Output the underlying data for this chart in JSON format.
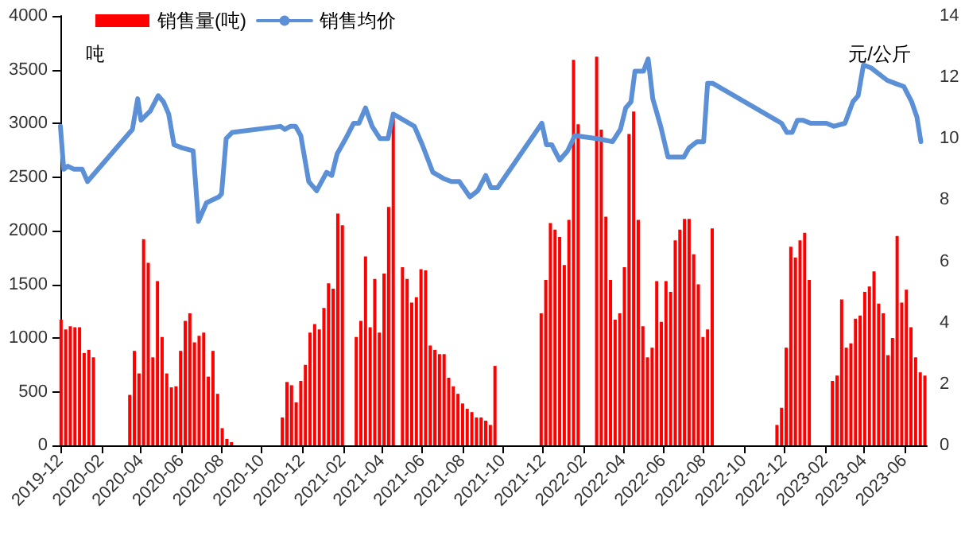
{
  "chart_data": {
    "type": "bar",
    "legend": "top left",
    "ylabel": "吨",
    "y2label": "元/公斤",
    "grid": false,
    "marker": "none",
    "xlim": [
      "2019-12-01",
      "2023-07-05"
    ],
    "xticks": [
      "2019-12",
      "2020-02",
      "2020-04",
      "2020-06",
      "2020-08",
      "2020-10",
      "2020-12",
      "2021-02",
      "2021-04",
      "2021-06",
      "2021-08",
      "2021-10",
      "2021-12",
      "2022-02",
      "2022-04",
      "2022-06",
      "2022-08",
      "2022-10",
      "2022-12",
      "2023-02",
      "2023-04",
      "2023-06"
    ],
    "ylim": [
      0,
      4000
    ],
    "yticks": [
      0,
      500,
      1000,
      1500,
      2000,
      2500,
      3000,
      3500,
      4000
    ],
    "y2lim": [
      0,
      14
    ],
    "y2ticks": [
      0,
      2,
      4,
      6,
      8,
      10,
      12,
      14
    ],
    "series": [
      {
        "name": "销售量(吨)",
        "color": "#ff0000",
        "x": [
          "2019-12-02",
          "2019-12-09",
          "2019-12-16",
          "2019-12-23",
          "2019-12-30",
          "2020-01-06",
          "2020-01-13",
          "2020-01-20",
          "2020-03-15",
          "2020-03-22",
          "2020-03-29",
          "2020-04-05",
          "2020-04-12",
          "2020-04-19",
          "2020-04-26",
          "2020-05-03",
          "2020-05-10",
          "2020-05-17",
          "2020-05-24",
          "2020-05-31",
          "2020-06-07",
          "2020-06-14",
          "2020-06-21",
          "2020-06-28",
          "2020-07-05",
          "2020-07-12",
          "2020-07-19",
          "2020-07-26",
          "2020-08-02",
          "2020-08-09",
          "2020-08-16",
          "2020-11-01",
          "2020-11-08",
          "2020-11-15",
          "2020-11-22",
          "2020-11-29",
          "2020-12-06",
          "2020-12-13",
          "2020-12-20",
          "2020-12-27",
          "2021-01-03",
          "2021-01-10",
          "2021-01-17",
          "2021-01-24",
          "2021-01-31",
          "2021-02-21",
          "2021-02-28",
          "2021-03-07",
          "2021-03-14",
          "2021-03-21",
          "2021-03-28",
          "2021-04-04",
          "2021-04-11",
          "2021-04-18",
          "2021-05-02",
          "2021-05-09",
          "2021-05-16",
          "2021-05-23",
          "2021-05-30",
          "2021-06-06",
          "2021-06-13",
          "2021-06-20",
          "2021-06-27",
          "2021-07-04",
          "2021-07-11",
          "2021-07-18",
          "2021-07-25",
          "2021-08-01",
          "2021-08-08",
          "2021-08-15",
          "2021-08-22",
          "2021-08-29",
          "2021-09-05",
          "2021-09-12",
          "2021-09-19",
          "2021-11-28",
          "2021-12-05",
          "2021-12-12",
          "2021-12-19",
          "2021-12-26",
          "2022-01-02",
          "2022-01-09",
          "2022-01-16",
          "2022-01-23",
          "2022-02-20",
          "2022-02-27",
          "2022-03-06",
          "2022-03-13",
          "2022-03-20",
          "2022-03-27",
          "2022-04-03",
          "2022-04-10",
          "2022-04-17",
          "2022-04-24",
          "2022-05-01",
          "2022-05-08",
          "2022-05-15",
          "2022-05-22",
          "2022-05-29",
          "2022-06-05",
          "2022-06-12",
          "2022-06-19",
          "2022-06-26",
          "2022-07-03",
          "2022-07-10",
          "2022-07-17",
          "2022-07-24",
          "2022-07-31",
          "2022-08-07",
          "2022-08-14",
          "2022-11-20",
          "2022-11-27",
          "2022-12-04",
          "2022-12-11",
          "2022-12-18",
          "2022-12-25",
          "2023-01-01",
          "2023-01-08",
          "2023-02-12",
          "2023-02-19",
          "2023-02-26",
          "2023-03-05",
          "2023-03-12",
          "2023-03-19",
          "2023-03-26",
          "2023-04-02",
          "2023-04-09",
          "2023-04-16",
          "2023-04-23",
          "2023-04-30",
          "2023-05-07",
          "2023-05-14",
          "2023-05-21",
          "2023-05-28",
          "2023-06-04",
          "2023-06-11",
          "2023-06-18",
          "2023-06-25",
          "2023-07-02"
        ],
        "values": [
          1170,
          1080,
          1110,
          1100,
          1100,
          860,
          890,
          820,
          470,
          880,
          670,
          1920,
          1700,
          820,
          1530,
          1010,
          670,
          540,
          550,
          880,
          1160,
          1230,
          960,
          1020,
          1050,
          640,
          880,
          480,
          160,
          60,
          30,
          260,
          590,
          560,
          400,
          600,
          750,
          1050,
          1130,
          1080,
          1280,
          1510,
          1460,
          2160,
          2050,
          1010,
          1160,
          1760,
          1100,
          1550,
          1050,
          1600,
          2220,
          3040,
          1660,
          1550,
          1330,
          1380,
          1640,
          1630,
          930,
          890,
          850,
          850,
          630,
          550,
          480,
          390,
          340,
          310,
          260,
          260,
          230,
          190,
          740,
          1230,
          1540,
          2070,
          2010,
          1940,
          1680,
          2100,
          3590,
          2990,
          3620,
          2940,
          2130,
          1540,
          1170,
          1230,
          1660,
          2900,
          3110,
          2100,
          1110,
          820,
          910,
          1530,
          1150,
          1530,
          1430,
          1910,
          2010,
          2110,
          2110,
          1780,
          1500,
          1010,
          1080,
          2020,
          190,
          350,
          910,
          1850,
          1750,
          1910,
          1980,
          1540,
          600,
          650,
          1360,
          910,
          950,
          1180,
          1210,
          1430,
          1480,
          1620,
          1320,
          1230,
          840,
          1000,
          1950,
          1330,
          1450,
          1100,
          820,
          680,
          650
        ]
      },
      {
        "type": "line",
        "name": "销售均价",
        "axis": "y2",
        "color": "#5b8fd6",
        "line_style": "solid",
        "x": [
          "2019-12-01",
          "2019-12-06",
          "2019-12-12",
          "2019-12-22",
          "2020-01-03",
          "2020-01-11",
          "2020-03-19",
          "2020-03-27",
          "2020-04-01",
          "2020-04-15",
          "2020-04-27",
          "2020-05-05",
          "2020-05-13",
          "2020-05-21",
          "2020-06-02",
          "2020-06-19",
          "2020-06-27",
          "2020-07-09",
          "2020-07-18",
          "2020-07-28",
          "2020-08-01",
          "2020-08-08",
          "2020-08-17",
          "2020-10-29",
          "2020-11-05",
          "2020-11-13",
          "2020-11-21",
          "2020-11-29",
          "2020-12-11",
          "2020-12-23",
          "2021-01-07",
          "2021-01-15",
          "2021-01-23",
          "2021-02-05",
          "2021-02-17",
          "2021-02-25",
          "2021-03-07",
          "2021-03-17",
          "2021-03-29",
          "2021-04-10",
          "2021-04-18",
          "2021-05-04",
          "2021-05-20",
          "2021-06-01",
          "2021-06-17",
          "2021-07-03",
          "2021-07-15",
          "2021-07-27",
          "2021-08-12",
          "2021-08-24",
          "2021-09-05",
          "2021-09-13",
          "2021-09-23",
          "2021-11-29",
          "2021-12-06",
          "2021-12-14",
          "2021-12-26",
          "2022-01-07",
          "2022-01-18",
          "2022-02-20",
          "2022-03-16",
          "2022-03-28",
          "2022-04-05",
          "2022-04-13",
          "2022-04-19",
          "2022-05-02",
          "2022-05-09",
          "2022-05-16",
          "2022-05-28",
          "2022-06-08",
          "2022-06-16",
          "2022-07-02",
          "2022-07-10",
          "2022-07-22",
          "2022-08-01",
          "2022-08-07",
          "2022-08-15",
          "2022-11-19",
          "2022-11-27",
          "2022-12-05",
          "2022-12-13",
          "2022-12-21",
          "2022-12-29",
          "2023-01-10",
          "2023-02-03",
          "2023-02-14",
          "2023-03-03",
          "2023-03-15",
          "2023-03-23",
          "2023-03-31",
          "2023-04-12",
          "2023-04-24",
          "2023-05-06",
          "2023-05-18",
          "2023-05-31",
          "2023-06-12",
          "2023-06-20",
          "2023-06-26"
        ],
        "values": [
          10.4,
          9.0,
          9.1,
          9.0,
          9.0,
          8.6,
          10.3,
          11.3,
          10.6,
          10.9,
          11.4,
          11.2,
          10.8,
          9.8,
          9.7,
          9.6,
          7.3,
          7.9,
          8.0,
          8.1,
          8.2,
          10.0,
          10.2,
          10.4,
          10.3,
          10.4,
          10.4,
          10.1,
          8.6,
          8.3,
          8.9,
          8.8,
          9.5,
          10.0,
          10.5,
          10.5,
          11.0,
          10.4,
          10.0,
          10.0,
          10.8,
          10.6,
          10.4,
          9.8,
          8.9,
          8.7,
          8.6,
          8.6,
          8.1,
          8.3,
          8.8,
          8.4,
          8.4,
          10.5,
          9.8,
          9.8,
          9.3,
          9.6,
          10.1,
          10.0,
          9.9,
          10.3,
          11.0,
          11.2,
          12.2,
          12.2,
          12.6,
          11.3,
          10.4,
          9.4,
          9.4,
          9.4,
          9.7,
          9.9,
          9.9,
          11.8,
          11.8,
          10.6,
          10.5,
          10.2,
          10.2,
          10.6,
          10.6,
          10.5,
          10.5,
          10.4,
          10.5,
          11.2,
          11.4,
          12.4,
          12.3,
          12.1,
          11.9,
          11.8,
          11.7,
          11.2,
          10.7,
          9.9
        ]
      }
    ]
  }
}
